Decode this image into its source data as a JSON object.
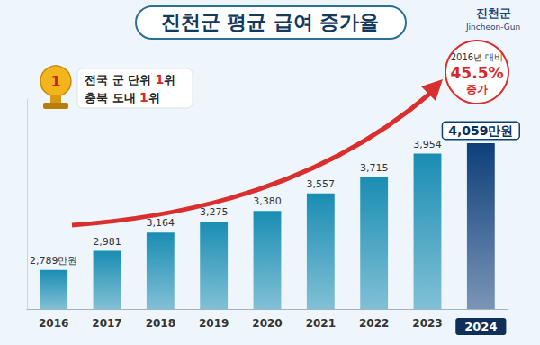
{
  "chart_data": {
    "type": "bar",
    "title": "진천군 평균 급여 증가율",
    "categories": [
      "2016",
      "2017",
      "2018",
      "2019",
      "2020",
      "2021",
      "2022",
      "2023",
      "2024"
    ],
    "values": [
      2789,
      2981,
      3164,
      3275,
      3380,
      3557,
      3715,
      3954,
      4059
    ],
    "value_labels": [
      "2,789만원",
      "2,981",
      "3,164",
      "3,275",
      "3,380",
      "3,557",
      "3,715",
      "3,954",
      "4,059만원"
    ],
    "colors": [
      "#1a8db3",
      "#1a8db3",
      "#1a8db3",
      "#1a8db3",
      "#1a8db3",
      "#1a8db3",
      "#1a8db3",
      "#1a8db3",
      "#0d3f7a"
    ],
    "ylim": [
      2400,
      4500
    ],
    "data_labels": true,
    "tick_labels": "x",
    "grid": false,
    "annotations": {
      "logo": [
        "진천군",
        "Jincheon-Gun"
      ],
      "badge": [
        "전국 군 단위 1위",
        "충북 도내 1위"
      ],
      "trophy": "1",
      "callout": [
        "2016년 대비",
        "45.5%",
        "증가"
      ]
    }
  }
}
